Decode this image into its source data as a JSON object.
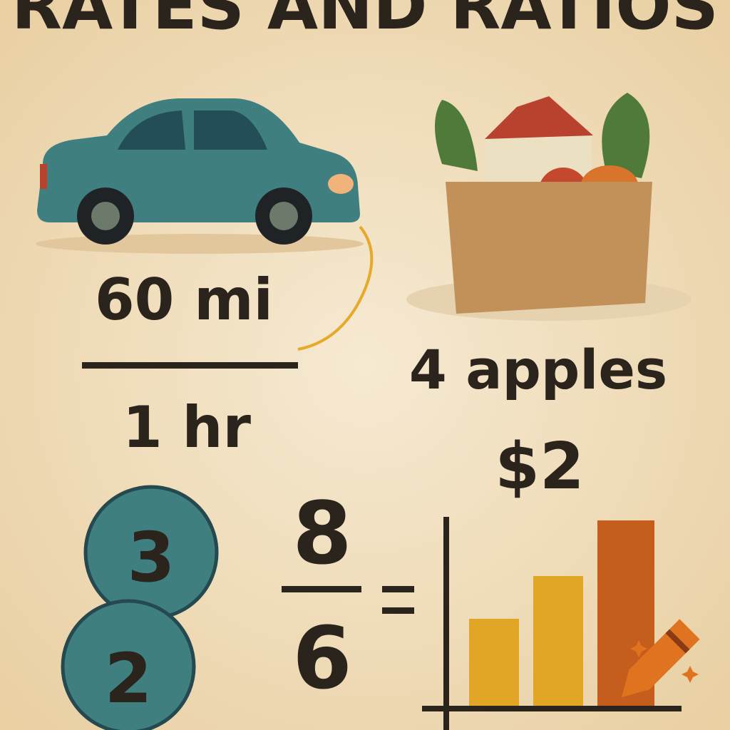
{
  "title": "RATES AND RATIOS",
  "rate": {
    "numerator": "60 mi",
    "denominator": "1 hr"
  },
  "price": {
    "quantity": "4 apples",
    "cost": "$2"
  },
  "circles": [
    "3",
    "2"
  ],
  "fraction": {
    "numerator": "8",
    "denominator": "6"
  }
}
